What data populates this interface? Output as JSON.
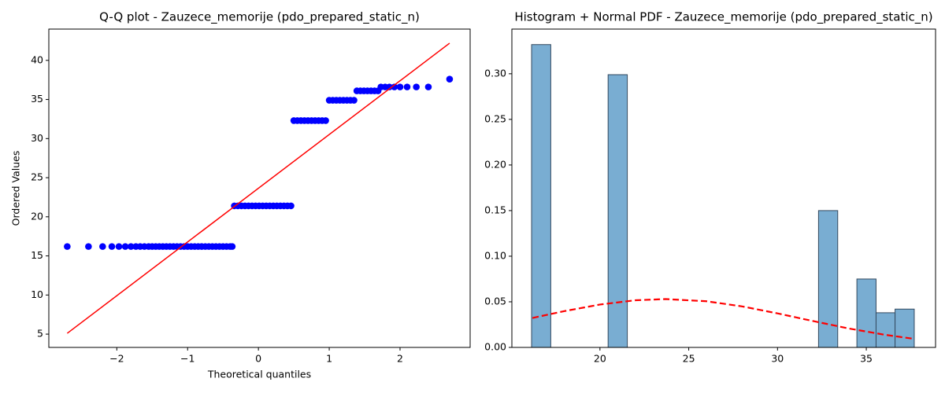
{
  "chart_data": [
    {
      "type": "scatter",
      "title": "Q-Q plot - Zauzece_memorije (pdo_prepared_static_n)",
      "x_label": "Theoretical quantiles",
      "y_label": "Ordered Values",
      "series": [
        {
          "style": "marker",
          "color": "#0000ff",
          "x": [
            -2.7,
            -2.4,
            -2.2,
            -2.07,
            -1.97,
            -1.88,
            -1.8,
            -1.73,
            -1.67,
            -1.61,
            -1.55,
            -1.5,
            -1.45,
            -1.4,
            -1.35,
            -1.3,
            -1.25,
            -1.2,
            -1.15,
            -1.1,
            -1.05,
            -1.0,
            -0.95,
            -0.9,
            -0.85,
            -0.8,
            -0.75,
            -0.7,
            -0.65,
            -0.6,
            -0.55,
            -0.5,
            -0.45,
            -0.4,
            -0.37,
            -0.34,
            -0.29,
            -0.24,
            -0.19,
            -0.14,
            -0.09,
            -0.04,
            0.01,
            0.06,
            0.11,
            0.16,
            0.21,
            0.26,
            0.31,
            0.36,
            0.41,
            0.46,
            0.5,
            0.55,
            0.6,
            0.65,
            0.7,
            0.75,
            0.8,
            0.85,
            0.9,
            0.95,
            1.0,
            1.05,
            1.1,
            1.15,
            1.2,
            1.25,
            1.3,
            1.35,
            1.39,
            1.44,
            1.49,
            1.54,
            1.59,
            1.64,
            1.69,
            1.73,
            1.79,
            1.85,
            1.92,
            2.0,
            2.1,
            2.23,
            2.4,
            2.7
          ],
          "values": [
            16.2,
            16.2,
            16.2,
            16.2,
            16.2,
            16.2,
            16.2,
            16.2,
            16.2,
            16.2,
            16.2,
            16.2,
            16.2,
            16.2,
            16.2,
            16.2,
            16.2,
            16.2,
            16.2,
            16.2,
            16.2,
            16.2,
            16.2,
            16.2,
            16.2,
            16.2,
            16.2,
            16.2,
            16.2,
            16.2,
            16.2,
            16.2,
            16.2,
            16.2,
            16.2,
            21.4,
            21.4,
            21.4,
            21.4,
            21.4,
            21.4,
            21.4,
            21.4,
            21.4,
            21.4,
            21.4,
            21.4,
            21.4,
            21.4,
            21.4,
            21.4,
            21.4,
            32.3,
            32.3,
            32.3,
            32.3,
            32.3,
            32.3,
            32.3,
            32.3,
            32.3,
            32.3,
            34.9,
            34.9,
            34.9,
            34.9,
            34.9,
            34.9,
            34.9,
            34.9,
            36.1,
            36.1,
            36.1,
            36.1,
            36.1,
            36.1,
            36.1,
            36.6,
            36.6,
            36.6,
            36.6,
            36.6,
            36.6,
            36.6,
            36.6,
            37.6
          ]
        },
        {
          "style": "line",
          "color": "#ff0000",
          "x": [
            -2.7,
            2.7
          ],
          "values": [
            5.1,
            42.2
          ]
        }
      ],
      "xlim": [
        -2.96,
        2.99
      ],
      "ylim": [
        3.3,
        44.0
      ],
      "xticks": [
        {
          "value": -2,
          "label": "−2"
        },
        {
          "value": -1,
          "label": "−1"
        },
        0,
        1,
        2
      ],
      "yticks": [
        5,
        10,
        15,
        20,
        25,
        30,
        35,
        40
      ]
    },
    {
      "type": "histogram",
      "title": "Histogram + Normal PDF - Zauzece_memorije (pdo_prepared_static_n)",
      "bins": [
        16.15,
        17.23,
        18.31,
        19.38,
        20.46,
        21.54,
        22.62,
        23.69,
        24.77,
        25.85,
        26.93,
        28.0,
        29.08,
        30.16,
        31.24,
        32.31,
        33.39,
        34.47,
        35.55,
        36.62,
        37.7
      ],
      "values": [
        0.332,
        0,
        0,
        0,
        0.299,
        0,
        0,
        0,
        0,
        0,
        0,
        0,
        0,
        0,
        0,
        0.15,
        0,
        0.075,
        0.038,
        0.042
      ],
      "color": "#79add2",
      "series": [
        {
          "style": "dashed-line",
          "color": "#ff0000",
          "x": [
            16.2,
            18,
            20,
            22,
            23.7,
            26,
            28,
            30,
            32,
            34,
            36,
            37.6
          ],
          "values": [
            0.0323,
            0.0398,
            0.047,
            0.0517,
            0.053,
            0.0506,
            0.045,
            0.0373,
            0.0289,
            0.0208,
            0.014,
            0.0096
          ]
        }
      ],
      "xlim": [
        15.04,
        38.9
      ],
      "ylim": [
        0,
        0.349
      ],
      "xticks": [
        20,
        25,
        30,
        35
      ],
      "yticks": [
        {
          "value": 0,
          "label": "0.00"
        },
        {
          "value": 0.05,
          "label": "0.05"
        },
        {
          "value": 0.1,
          "label": "0.10"
        },
        {
          "value": 0.15,
          "label": "0.15"
        },
        {
          "value": 0.2,
          "label": "0.20"
        },
        {
          "value": 0.25,
          "label": "0.25"
        },
        {
          "value": 0.3,
          "label": "0.30"
        }
      ]
    }
  ]
}
